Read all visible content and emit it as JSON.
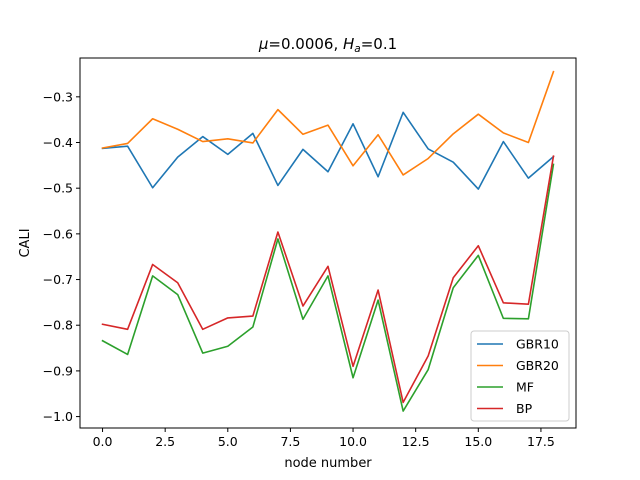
{
  "chart_data": {
    "type": "line",
    "title_parts": {
      "mu_symbol": "μ",
      "mu_text": "=0.0006, ",
      "h_symbol": "H",
      "h_sub": "a",
      "h_text": "=0.1"
    },
    "xlabel": "node number",
    "ylabel": "CALI",
    "xlim": [
      -0.9,
      18.9
    ],
    "ylim": [
      -1.025,
      -0.215
    ],
    "xticks": [
      0.0,
      2.5,
      5.0,
      7.5,
      10.0,
      12.5,
      15.0,
      17.5
    ],
    "xtick_labels": [
      "0.0",
      "2.5",
      "5.0",
      "7.5",
      "10.0",
      "12.5",
      "15.0",
      "17.5"
    ],
    "yticks": [
      -1.0,
      -0.9,
      -0.8,
      -0.7,
      -0.6,
      -0.5,
      -0.4,
      -0.3
    ],
    "ytick_labels": [
      "−1.0",
      "−0.9",
      "−0.8",
      "−0.7",
      "−0.6",
      "−0.5",
      "−0.4",
      "−0.3"
    ],
    "grid": false,
    "legend_position": "lower-right",
    "x": [
      0,
      1,
      2,
      3,
      4,
      5,
      6,
      7,
      8,
      9,
      10,
      11,
      12,
      13,
      14,
      15,
      16,
      17,
      18
    ],
    "series": [
      {
        "name": "GBR10",
        "color": "#1f77b4",
        "values": [
          -0.413,
          -0.408,
          -0.499,
          -0.432,
          -0.387,
          -0.426,
          -0.38,
          -0.494,
          -0.415,
          -0.464,
          -0.359,
          -0.475,
          -0.334,
          -0.414,
          -0.443,
          -0.502,
          -0.398,
          -0.478,
          -0.431
        ]
      },
      {
        "name": "GBR20",
        "color": "#ff7f0e",
        "values": [
          -0.412,
          -0.402,
          -0.348,
          -0.371,
          -0.398,
          -0.392,
          -0.401,
          -0.328,
          -0.382,
          -0.362,
          -0.451,
          -0.383,
          -0.471,
          -0.435,
          -0.381,
          -0.338,
          -0.379,
          -0.4,
          -0.245
        ]
      },
      {
        "name": "MF",
        "color": "#2ca02c",
        "values": [
          -0.834,
          -0.864,
          -0.692,
          -0.733,
          -0.861,
          -0.846,
          -0.804,
          -0.611,
          -0.787,
          -0.692,
          -0.915,
          -0.745,
          -0.988,
          -0.897,
          -0.718,
          -0.647,
          -0.785,
          -0.786,
          -0.448
        ]
      },
      {
        "name": "BP",
        "color": "#d62728",
        "values": [
          -0.798,
          -0.809,
          -0.667,
          -0.707,
          -0.809,
          -0.784,
          -0.78,
          -0.596,
          -0.758,
          -0.671,
          -0.89,
          -0.723,
          -0.969,
          -0.867,
          -0.696,
          -0.626,
          -0.751,
          -0.754,
          -0.43
        ]
      }
    ]
  }
}
